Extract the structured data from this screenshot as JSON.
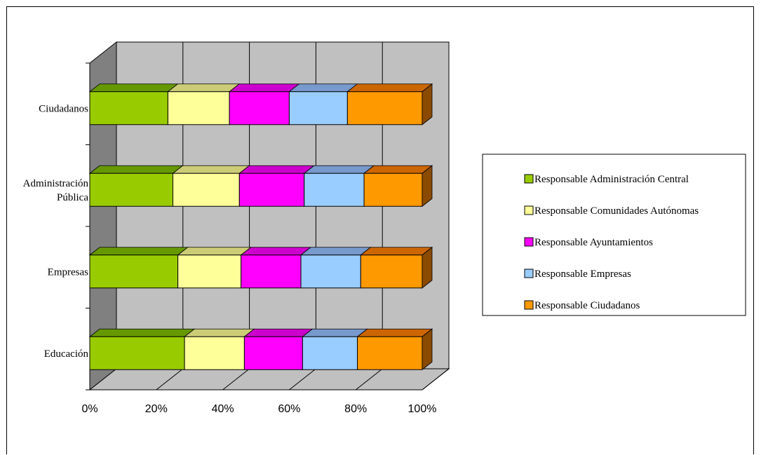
{
  "chart_data": {
    "type": "bar",
    "orientation": "horizontal",
    "stacked": "percent",
    "style": "3d",
    "categories": [
      "Ciudadanos",
      "Administración Pública",
      "Empresas",
      "Educación"
    ],
    "category_lines": [
      [
        "Ciudadanos"
      ],
      [
        "Administración",
        "Pública"
      ],
      [
        "Empresas"
      ],
      [
        "Educación"
      ]
    ],
    "series": [
      {
        "name": "Responsable Administración Central",
        "color": "#99cc00",
        "top": "#669900",
        "side": "#4d7300",
        "values": [
          23.5,
          25,
          26.5,
          28.5
        ]
      },
      {
        "name": "Responsable Comunidades Autónomas",
        "color": "#ffff99",
        "top": "#cccc77",
        "side": "#999966",
        "values": [
          18.5,
          20,
          19,
          18
        ]
      },
      {
        "name": "Responsable Ayuntamientos",
        "color": "#ff00ff",
        "top": "#cc00cc",
        "side": "#990099",
        "values": [
          18,
          19.5,
          18,
          17.5
        ]
      },
      {
        "name": "Responsable Empresas",
        "color": "#99ccff",
        "top": "#7799cc",
        "side": "#6688aa",
        "values": [
          17.5,
          18,
          18,
          16.5
        ]
      },
      {
        "name": "Responsable Ciudadanos",
        "color": "#ff9900",
        "top": "#cc6600",
        "side": "#8a4a00",
        "values": [
          22.5,
          17.5,
          18.5,
          19.5
        ]
      }
    ],
    "xticks": [
      "0%",
      "20%",
      "40%",
      "60%",
      "80%",
      "100%"
    ],
    "xlim": [
      0,
      100
    ],
    "title": "",
    "xlabel": "",
    "ylabel": "",
    "grid": true,
    "legend": "right",
    "colors": {
      "wall": "#c0c0c0",
      "side_wall": "#808080",
      "floor": "#c0c0c0"
    }
  }
}
